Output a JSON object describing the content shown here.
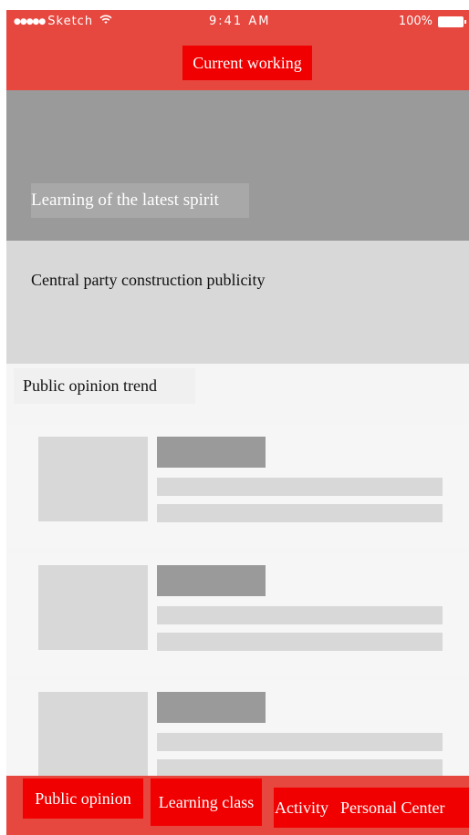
{
  "status_bar": {
    "carrier": "Sketch",
    "signal_icon": "signal-dots-icon",
    "wifi_icon": "wifi-icon",
    "time": "9:41 AM",
    "battery": "100%",
    "battery_icon": "battery-icon"
  },
  "header": {
    "title": "Current working"
  },
  "banner": {
    "caption": "Learning of the latest spirit"
  },
  "central": {
    "title": "Central party construction publicity"
  },
  "section": {
    "title": "Public opinion trend"
  },
  "tabs": [
    {
      "label": "Public opinion"
    },
    {
      "label": "Learning class"
    },
    {
      "label": "Activity"
    },
    {
      "label": "Personal Center"
    }
  ],
  "colors": {
    "header_bg": "#e6473f",
    "accent": "#f00000",
    "banner_bg": "#9a9a9a",
    "placeholder": "#d8d8d8"
  }
}
